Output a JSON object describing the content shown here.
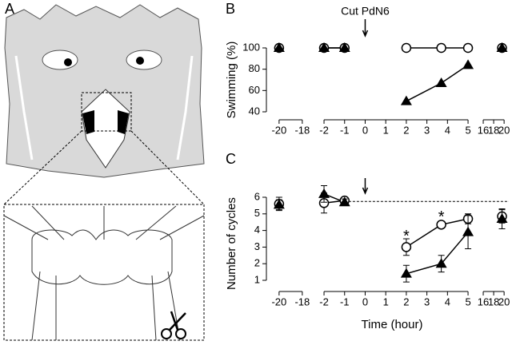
{
  "figure": {
    "panel_labels": [
      "A",
      "B",
      "C"
    ]
  },
  "chart_data": [
    {
      "type": "line",
      "y_label": "Swimming (%)",
      "x": [
        -20,
        -2,
        -1,
        0,
        2,
        3.7,
        5,
        19.6
      ],
      "xlim": [
        [
          -20.75,
          -17.3
        ],
        [
          -2.39,
          5.27
        ],
        [
          14.92,
          20.9
        ]
      ],
      "xticks": [
        -20,
        -18,
        -2,
        -1,
        0,
        1,
        2,
        3,
        4,
        5,
        16,
        18,
        20
      ],
      "ylim": [
        40,
        100
      ],
      "yticks": [
        40,
        60,
        80,
        100
      ],
      "series": [
        {
          "marker": "circle-open",
          "color": "#000000",
          "values": [
            100,
            100,
            100,
            null,
            100,
            100,
            100,
            100
          ]
        },
        {
          "marker": "triangle-filled",
          "color": "#000000",
          "values": [
            100,
            100,
            100,
            null,
            50,
            67,
            84,
            100
          ]
        }
      ],
      "annotations": [
        {
          "text": "Cut PdN6",
          "x": 0
        }
      ]
    },
    {
      "type": "line",
      "y_label": "Number of cycles",
      "x_label": "Time (hour)",
      "x": [
        -20,
        -2,
        -1,
        0,
        2,
        3.7,
        5,
        19.6
      ],
      "xlim": [
        [
          -20.75,
          -17.3
        ],
        [
          -2.39,
          5.27
        ],
        [
          14.92,
          20.9
        ]
      ],
      "xticks": [
        -20,
        -18,
        -2,
        -1,
        0,
        1,
        2,
        3,
        4,
        5,
        16,
        18,
        20
      ],
      "ylim": [
        1,
        6
      ],
      "yticks": [
        1,
        2,
        3,
        4,
        5,
        6
      ],
      "reference_line": 5.75,
      "arrow_x": 0,
      "series": [
        {
          "marker": "circle-open",
          "color": "#000000",
          "values": [
            5.6,
            5.65,
            5.8,
            null,
            3.0,
            4.35,
            4.7,
            4.85
          ],
          "errors": [
            0.4,
            0.6,
            0.2,
            null,
            0.5,
            0.1,
            0.3,
            0.4
          ]
        },
        {
          "marker": "triangle-filled",
          "color": "#000000",
          "values": [
            5.55,
            6.2,
            5.7,
            null,
            1.4,
            2.0,
            3.9,
            4.7
          ],
          "errors": [
            0.3,
            0.5,
            0.2,
            null,
            0.5,
            0.5,
            1.0,
            0.6
          ]
        }
      ],
      "annotations": [
        {
          "text": "*",
          "x": 2,
          "y": 3.8
        },
        {
          "text": "*",
          "x": 3.7,
          "y": 4.95
        }
      ]
    }
  ]
}
